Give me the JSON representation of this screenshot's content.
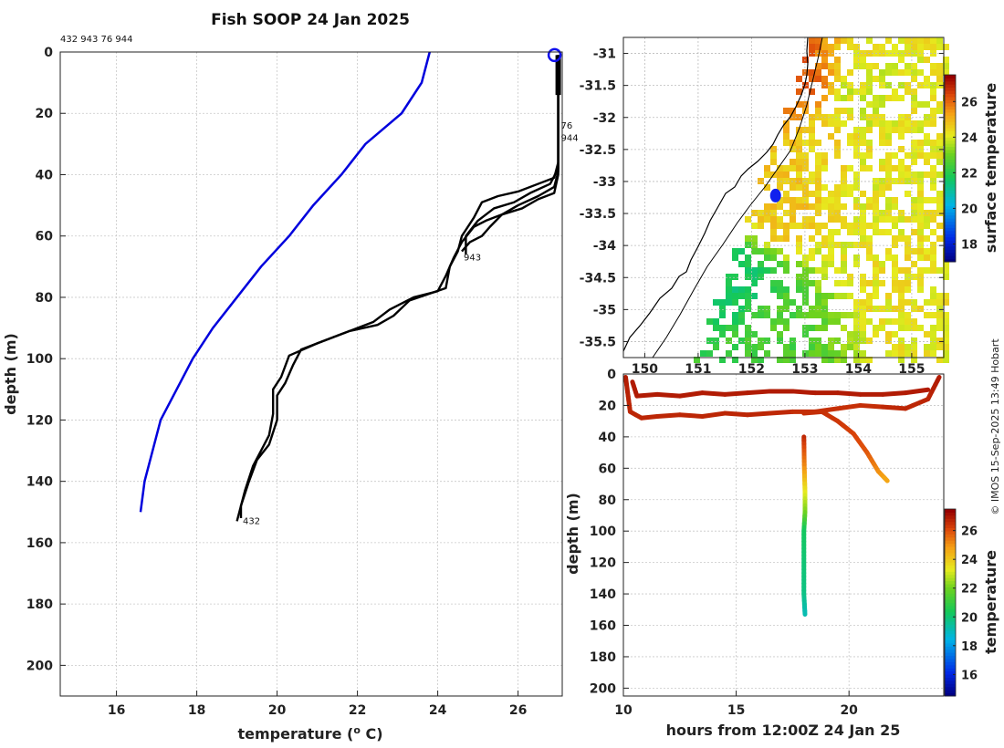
{
  "chart_data": [
    {
      "type": "line",
      "title": "Fish SOOP 24 Jan 2025",
      "header_ids": "432 943 76 944",
      "xlabel": "temperature (",
      "xlabel_sup": "o",
      "xlabel_unit": " C)",
      "ylabel": "depth (m)",
      "xlim": [
        14.6,
        27.1
      ],
      "ylim": [
        210,
        0
      ],
      "xticks": [
        "16",
        "18",
        "20",
        "22",
        "24",
        "26"
      ],
      "yticks": [
        "0",
        "20",
        "40",
        "60",
        "80",
        "100",
        "120",
        "140",
        "160",
        "180",
        "200"
      ],
      "grid": true,
      "marker": {
        "name": "surface location",
        "x": 27.0,
        "y": 1,
        "color": "#1010ee"
      },
      "climatology": {
        "name": "climatology",
        "color": "#0000dd",
        "points": [
          [
            23.8,
            0
          ],
          [
            23.6,
            10
          ],
          [
            23.1,
            20
          ],
          [
            22.2,
            30
          ],
          [
            21.6,
            40
          ],
          [
            20.9,
            50
          ],
          [
            20.3,
            60
          ],
          [
            19.6,
            70
          ],
          [
            19.0,
            80
          ],
          [
            18.4,
            90
          ],
          [
            17.9,
            100
          ],
          [
            17.5,
            110
          ],
          [
            17.1,
            120
          ],
          [
            16.9,
            130
          ],
          [
            16.7,
            140
          ],
          [
            16.6,
            150
          ]
        ]
      },
      "profiles": [
        {
          "name": "432",
          "color": "#000000",
          "label_at": [
            19.1,
            154
          ],
          "points": [
            [
              27.0,
              1
            ],
            [
              27.0,
              20
            ],
            [
              27.0,
              36
            ],
            [
              26.9,
              41
            ],
            [
              26.5,
              43
            ],
            [
              26.0,
              45.5
            ],
            [
              25.5,
              47
            ],
            [
              25.1,
              49
            ],
            [
              24.9,
              54
            ],
            [
              24.6,
              60
            ],
            [
              24.5,
              65
            ],
            [
              24.3,
              70
            ],
            [
              24.2,
              77
            ],
            [
              23.3,
              81
            ],
            [
              22.9,
              86
            ],
            [
              22.5,
              89
            ],
            [
              21.8,
              91
            ],
            [
              21.0,
              95
            ],
            [
              20.3,
              99
            ],
            [
              20.1,
              106
            ],
            [
              19.9,
              110
            ],
            [
              19.9,
              118
            ],
            [
              19.8,
              125
            ],
            [
              19.6,
              130
            ],
            [
              19.4,
              135
            ],
            [
              19.2,
              143
            ],
            [
              19.1,
              148
            ],
            [
              19.0,
              153
            ]
          ]
        },
        {
          "name": "943",
          "color": "#000000",
          "label_at": [
            24.6,
            68
          ],
          "points": [
            [
              27.0,
              1
            ],
            [
              27.0,
              20
            ],
            [
              27.0,
              38
            ],
            [
              26.8,
              43
            ],
            [
              26.3,
              46
            ],
            [
              25.9,
              49
            ],
            [
              25.4,
              51
            ],
            [
              25.0,
              55
            ],
            [
              24.7,
              60
            ],
            [
              24.7,
              66
            ]
          ]
        },
        {
          "name": "76",
          "color": "#000000",
          "label_at": [
            27.02,
            25
          ],
          "points": [
            [
              27.0,
              1
            ],
            [
              27.0,
              20
            ],
            [
              27.0,
              39
            ],
            [
              26.9,
              44
            ],
            [
              26.5,
              47
            ],
            [
              26.0,
              50
            ],
            [
              25.6,
              53
            ],
            [
              25.3,
              57
            ],
            [
              25.1,
              60
            ],
            [
              24.8,
              62
            ],
            [
              24.6,
              65
            ]
          ]
        },
        {
          "name": "944",
          "color": "#000000",
          "label_at": [
            27.02,
            29
          ],
          "points": [
            [
              27.0,
              1
            ],
            [
              27.0,
              20
            ],
            [
              27.0,
              40
            ],
            [
              26.9,
              46
            ],
            [
              26.5,
              48
            ],
            [
              26.1,
              51
            ],
            [
              25.6,
              53
            ],
            [
              25.2,
              55
            ],
            [
              24.9,
              57
            ],
            [
              24.6,
              62
            ],
            [
              24.4,
              67
            ],
            [
              24.2,
              73
            ],
            [
              24.0,
              78
            ],
            [
              23.4,
              80
            ],
            [
              22.8,
              84
            ],
            [
              22.4,
              88
            ],
            [
              21.6,
              92
            ],
            [
              20.6,
              97
            ],
            [
              20.4,
              102
            ],
            [
              20.2,
              108
            ],
            [
              20.0,
              112
            ],
            [
              20.0,
              120
            ],
            [
              19.8,
              128
            ],
            [
              19.5,
              133
            ],
            [
              19.3,
              140
            ],
            [
              19.1,
              148
            ],
            [
              19.1,
              152
            ]
          ]
        }
      ]
    },
    {
      "type": "heatmap",
      "name": "surface temperature map",
      "colorbar_label": "surface temperature",
      "colorbar_range": [
        17,
        27.5
      ],
      "colorbar_ticks": [
        "18",
        "20",
        "22",
        "24",
        "26"
      ],
      "xlim": [
        149.6,
        155.6
      ],
      "ylim": [
        -35.75,
        -30.75
      ],
      "xticks": [
        "150",
        "151",
        "152",
        "153",
        "154",
        "155"
      ],
      "yticks": [
        "-31",
        "-31.5",
        "-32",
        "-32.5",
        "-33",
        "-33.5",
        "-34",
        "-34.5",
        "-35",
        "-35.5"
      ],
      "fields": [
        {
          "lon": 154.0,
          "lat": -31.7,
          "value": 24.0
        },
        {
          "lon": 152.9,
          "lat": -31.5,
          "value": 26.2
        },
        {
          "lon": 153.4,
          "lat": -32.3,
          "value": 24.5
        },
        {
          "lon": 152.5,
          "lat": -33.4,
          "value": 24.8
        },
        {
          "lon": 154.8,
          "lat": -34.6,
          "value": 24.3
        },
        {
          "lon": 151.8,
          "lat": -34.6,
          "value": 21.6
        },
        {
          "lon": 152.3,
          "lat": -35.3,
          "value": 22.6
        },
        {
          "lon": 154.4,
          "lat": -33.0,
          "value": 24.2
        }
      ],
      "track_point": {
        "name": "ship position",
        "lon": 152.45,
        "lat": -33.22,
        "color": "#1020ee"
      }
    },
    {
      "type": "line",
      "name": "depth vs time section",
      "xlabel": "hours from 12:00Z 24 Jan 25",
      "ylabel": "depth (m)",
      "xlim": [
        10,
        24.2
      ],
      "ylim": [
        205,
        0
      ],
      "xticks": [
        "10",
        "15",
        "20"
      ],
      "yticks": [
        "0",
        "20",
        "40",
        "60",
        "80",
        "100",
        "120",
        "140",
        "160",
        "180",
        "200"
      ],
      "colorbar_label": "temperature",
      "colorbar_range": [
        14.5,
        27.5
      ],
      "colorbar_ticks": [
        "16",
        "18",
        "20",
        "22",
        "24",
        "26"
      ],
      "tracks": [
        {
          "name": "upcast 1",
          "points": [
            [
              10.1,
              2,
              27
            ],
            [
              10.3,
              24,
              26.8
            ],
            [
              10.8,
              28,
              26.8
            ],
            [
              11.5,
              27,
              26.8
            ],
            [
              12.5,
              26,
              26.8
            ],
            [
              13.5,
              27,
              26.8
            ],
            [
              14.5,
              25,
              26.8
            ],
            [
              15.5,
              26,
              26.8
            ],
            [
              16.5,
              25,
              26.8
            ],
            [
              17.5,
              24,
              26.7
            ],
            [
              18.5,
              24,
              26.6
            ],
            [
              19.5,
              22,
              26.6
            ],
            [
              20.5,
              20,
              26.6
            ],
            [
              21.5,
              21,
              26.7
            ],
            [
              22.5,
              22,
              26.8
            ],
            [
              23.5,
              16,
              26.8
            ],
            [
              24.0,
              2,
              27
            ]
          ]
        },
        {
          "name": "upcast 2",
          "points": [
            [
              10.4,
              5,
              27
            ],
            [
              10.6,
              14,
              27
            ],
            [
              11.5,
              13,
              27
            ],
            [
              12.5,
              14,
              27
            ],
            [
              13.5,
              12,
              27
            ],
            [
              14.5,
              13,
              27
            ],
            [
              15.5,
              12,
              27
            ],
            [
              16.5,
              11,
              27
            ],
            [
              17.5,
              11,
              27
            ],
            [
              18.5,
              12,
              27
            ],
            [
              19.5,
              12,
              27
            ],
            [
              20.5,
              13,
              27
            ],
            [
              21.5,
              13,
              27
            ],
            [
              22.5,
              12,
              27
            ],
            [
              23.5,
              10,
              27
            ]
          ]
        },
        {
          "name": "deep section",
          "points": [
            [
              18.0,
              40,
              26.8
            ],
            [
              18.02,
              60,
              25.2
            ],
            [
              18.05,
              75,
              23.5
            ],
            [
              18.05,
              88,
              22.2
            ],
            [
              18.0,
              100,
              20.3
            ],
            [
              18.0,
              120,
              20.0
            ],
            [
              18.0,
              140,
              19.8
            ],
            [
              18.05,
              153,
              19.1
            ]
          ]
        },
        {
          "name": "mid tow",
          "points": [
            [
              18.0,
              25,
              26.7
            ],
            [
              18.8,
              24,
              26.6
            ],
            [
              19.5,
              30,
              26.5
            ],
            [
              20.2,
              38,
              26.3
            ],
            [
              20.8,
              50,
              26.0
            ],
            [
              21.3,
              62,
              25.2
            ],
            [
              21.7,
              68,
              24.7
            ]
          ]
        }
      ]
    }
  ],
  "credit": "© IMOS 15-Sep-2025 13:49 Hobart"
}
